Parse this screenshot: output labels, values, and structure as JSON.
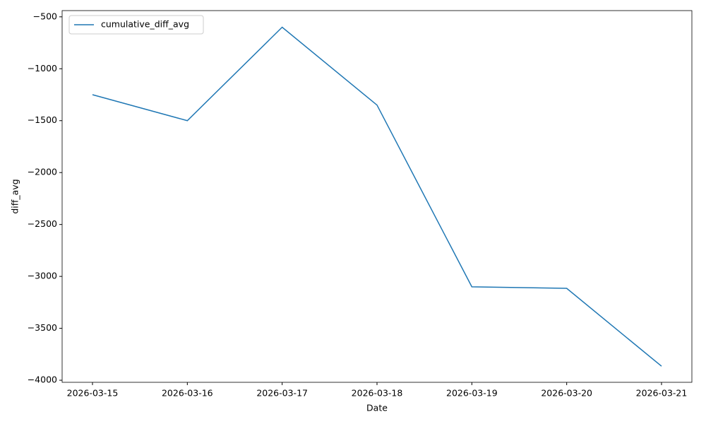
{
  "chart_data": {
    "type": "line",
    "x_label": "Date",
    "y_label": "diff_avg",
    "categories": [
      "2026-03-15",
      "2026-03-16",
      "2026-03-17",
      "2026-03-18",
      "2026-03-19",
      "2026-03-20",
      "2026-03-21"
    ],
    "series": [
      {
        "name": "cumulative_diff_avg",
        "color": "#1f77b4",
        "values": [
          -1250,
          -1500,
          -600,
          -1350,
          -3100,
          -3115,
          -3865
        ]
      }
    ],
    "ylim": [
      -4020,
      -440
    ],
    "yticks": [
      {
        "value": -4000,
        "label": "−4000"
      },
      {
        "value": -3500,
        "label": "−3500"
      },
      {
        "value": -3000,
        "label": "−3000"
      },
      {
        "value": -2500,
        "label": "−2500"
      },
      {
        "value": -2000,
        "label": "−2000"
      },
      {
        "value": -1500,
        "label": "−1500"
      },
      {
        "value": -1000,
        "label": "−1000"
      },
      {
        "value": -500,
        "label": "−500"
      }
    ],
    "legend": "upper left",
    "grid": false
  }
}
